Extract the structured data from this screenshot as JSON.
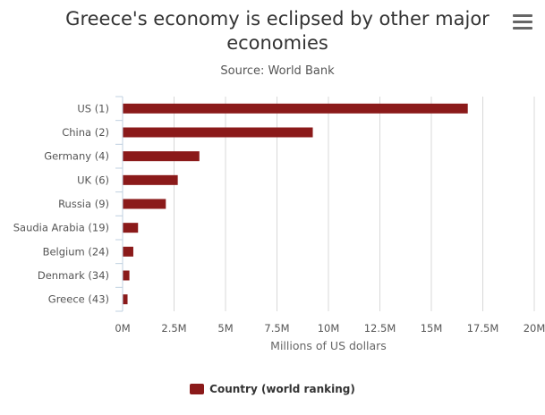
{
  "header": {
    "title_line1": "Greece's economy is eclipsed by other major",
    "title_line2": "economies",
    "subtitle": "Source: World Bank",
    "menu_icon": "hamburger-menu-icon"
  },
  "colors": {
    "bar": "#8b1a1a",
    "grid": "#d8d8d8",
    "axis": "#c0d0e0"
  },
  "chart_data": {
    "type": "bar",
    "orientation": "horizontal",
    "title": "Greece's economy is eclipsed by other major economies",
    "subtitle": "Source: World Bank",
    "categories": [
      "US (1)",
      "China (2)",
      "Germany (4)",
      "UK (6)",
      "Russia (9)",
      "Saudia Arabia (19)",
      "Belgium (24)",
      "Denmark (34)",
      "Greece (43)"
    ],
    "series": [
      {
        "name": "Country (world ranking)",
        "values": [
          16.77,
          9.24,
          3.73,
          2.68,
          2.1,
          0.75,
          0.52,
          0.33,
          0.24
        ]
      }
    ],
    "xlabel": "Millions of US dollars",
    "ylabel": "",
    "xlim": [
      0,
      20
    ],
    "x_ticks": [
      "0M",
      "2.5M",
      "5M",
      "7.5M",
      "10M",
      "12.5M",
      "15M",
      "17.5M",
      "20M"
    ],
    "grid": true,
    "legend": "bottom-center"
  }
}
